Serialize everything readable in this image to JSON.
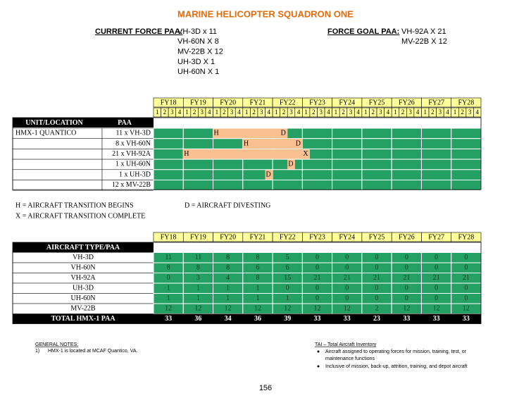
{
  "header": {
    "title": "MARINE HELICOPTER SQUADRON ONE"
  },
  "current_force": {
    "label": "CURRENT FORCE PAA:",
    "items": [
      "VH-3D x 11",
      "VH-60N X 8",
      "MV-22B X 12",
      "UH-3D X 1",
      "UH-60N X 1"
    ]
  },
  "force_goal": {
    "label": "FORCE GOAL PAA:",
    "items": [
      "VH-92A X 21",
      "MV-22B X 12"
    ]
  },
  "schedule": {
    "fiscal_years": [
      "FY18",
      "FY19",
      "FY20",
      "FY21",
      "FY22",
      "FY23",
      "FY24",
      "FY25",
      "FY26",
      "FY27",
      "FY28"
    ],
    "quarters": [
      1,
      2,
      3,
      4
    ],
    "columns": [
      "UNIT/LOCATION",
      "PAA"
    ],
    "rows": [
      {
        "unit": "HMX-1 QUANTICO",
        "paa": "11 x VH-3D",
        "transition": {
          "from": 8,
          "to": 17
        },
        "marks": [
          {
            "text": "H",
            "at": 8
          },
          {
            "text": "D",
            "at": 17
          }
        ]
      },
      {
        "paa": "8 x VH-60N",
        "transition": {
          "from": 12,
          "to": 19
        },
        "marks": [
          {
            "text": "H",
            "at": 12
          },
          {
            "text": "D",
            "at": 19
          }
        ]
      },
      {
        "paa": "21 x VH-92A",
        "transition": {
          "from": 4,
          "to": 20
        },
        "marks": [
          {
            "text": "H",
            "at": 4
          },
          {
            "text": "X",
            "at": 20
          }
        ]
      },
      {
        "paa": "1 x UH-60N",
        "transition": {
          "from": 18,
          "to": 18
        },
        "marks": [
          {
            "text": "D",
            "at": 18
          }
        ]
      },
      {
        "paa": "1 x UH-3D",
        "transition": {
          "from": 15,
          "to": 15
        },
        "marks": [
          {
            "text": "D",
            "at": 15
          }
        ]
      },
      {
        "paa": "12 x MV-22B"
      }
    ]
  },
  "legend": {
    "items": [
      "H = AIRCRAFT TRANSITION BEGINS",
      "X = AIRCRAFT TRANSITION COMPLETE",
      "D = AIRCRAFT DIVESTING"
    ]
  },
  "inventory": {
    "fiscal_years": [
      "FY18",
      "FY19",
      "FY20",
      "FY21",
      "FY22",
      "FY23",
      "FY24",
      "FY25",
      "FY26",
      "FY27",
      "FY28"
    ],
    "header": "AIRCRAFT TYPE/PAA",
    "rows": [
      {
        "name": "VH-3D",
        "values": [
          11,
          11,
          8,
          8,
          5,
          0,
          0,
          0,
          0,
          0,
          0
        ]
      },
      {
        "name": "VH-60N",
        "values": [
          8,
          8,
          8,
          6,
          6,
          0,
          0,
          0,
          0,
          0,
          0
        ]
      },
      {
        "name": "VH-92A",
        "values": [
          0,
          3,
          4,
          8,
          15,
          21,
          21,
          21,
          21,
          21,
          21
        ]
      },
      {
        "name": "UH-3D",
        "values": [
          1,
          1,
          1,
          1,
          0,
          0,
          0,
          0,
          0,
          0,
          0
        ]
      },
      {
        "name": "UH-60N",
        "values": [
          1,
          1,
          1,
          1,
          1,
          0,
          0,
          0,
          0,
          0,
          0
        ]
      },
      {
        "name": "MV-22B",
        "values": [
          12,
          12,
          12,
          12,
          12,
          12,
          12,
          2,
          12,
          12,
          12
        ]
      }
    ],
    "total": {
      "name": "TOTAL HMX-1 PAA",
      "values": [
        33,
        36,
        34,
        36,
        39,
        33,
        33,
        23,
        33,
        33,
        33
      ]
    }
  },
  "notes": {
    "title": "GENERAL NOTES:",
    "items": [
      {
        "number": "1)",
        "text": "HMX-1 is located at MCAF Quantico, VA."
      }
    ]
  },
  "tai": {
    "title": "TAI – Total Aircraft Inventory",
    "bullets": [
      [
        "Aircraft assigned to operating forces for mission, training, test, or",
        "maintenance functions"
      ],
      [
        "Inclusive of mission, back-up, attrition, training, and depot aircraft"
      ]
    ]
  },
  "page_number": "156"
}
